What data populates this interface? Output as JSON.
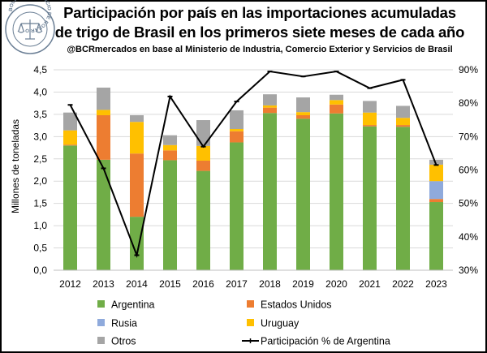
{
  "header": {
    "title_line1": "Participación por país en las importaciones acumuladas",
    "title_line2": "de trigo de Brasil en los primeros siete meses de cada año",
    "subtitle": "@BCRmercados en base al Ministerio de Industria, Comercio Exterior y Servicios de Brasil"
  },
  "logo": {
    "ring_text": "BOLSA DE COMERCIO DE ROSARIO"
  },
  "colors": {
    "argentina": "#70ad47",
    "estados_unidos": "#ed7d31",
    "rusia": "#8faadc",
    "uruguay": "#ffc000",
    "otros": "#a5a5a5",
    "line": "#000000"
  },
  "chart_data": {
    "type": "bar",
    "stacked": true,
    "categories": [
      "2012",
      "2013",
      "2014",
      "2015",
      "2016",
      "2017",
      "2018",
      "2019",
      "2020",
      "2021",
      "2022",
      "2023"
    ],
    "ylabel": "Millones de toneladas",
    "ylim": [
      0,
      4.5
    ],
    "y_ticks": [
      "0,0",
      "0,5",
      "1,0",
      "1,5",
      "2,0",
      "2,5",
      "3,0",
      "3,5",
      "4,0",
      "4,5"
    ],
    "y2lim": [
      30,
      90
    ],
    "y2_ticks": [
      "30%",
      "40%",
      "50%",
      "60%",
      "70%",
      "80%",
      "90%"
    ],
    "grid": true,
    "legend_position": "bottom",
    "series": [
      {
        "name": "Argentina",
        "key": "argentina",
        "values": [
          2.8,
          2.48,
          1.2,
          2.47,
          2.23,
          2.87,
          3.53,
          3.4,
          3.52,
          3.23,
          3.22,
          1.53
        ]
      },
      {
        "name": "Estados Unidos",
        "key": "estados_unidos",
        "values": [
          0.02,
          1.0,
          1.42,
          0.22,
          0.23,
          0.25,
          0.12,
          0.08,
          0.2,
          0.03,
          0.04,
          0.07
        ]
      },
      {
        "name": "Rusia",
        "key": "rusia",
        "values": [
          0.0,
          0.0,
          0.0,
          0.0,
          0.0,
          0.0,
          0.0,
          0.0,
          0.0,
          0.0,
          0.0,
          0.4
        ]
      },
      {
        "name": "Uruguay",
        "key": "uruguay",
        "values": [
          0.32,
          0.12,
          0.71,
          0.12,
          0.33,
          0.05,
          0.05,
          0.07,
          0.1,
          0.28,
          0.16,
          0.37
        ]
      },
      {
        "name": "Otros",
        "key": "otros",
        "values": [
          0.4,
          0.5,
          0.15,
          0.22,
          0.58,
          0.42,
          0.25,
          0.33,
          0.12,
          0.26,
          0.27,
          0.11
        ]
      }
    ],
    "line_series": {
      "name": "Participación % de Argentina",
      "axis": "secondary",
      "values": [
        79.5,
        60.5,
        34.5,
        82.0,
        67.0,
        80.5,
        89.5,
        88.0,
        89.5,
        84.5,
        87.0,
        61.5
      ]
    }
  }
}
